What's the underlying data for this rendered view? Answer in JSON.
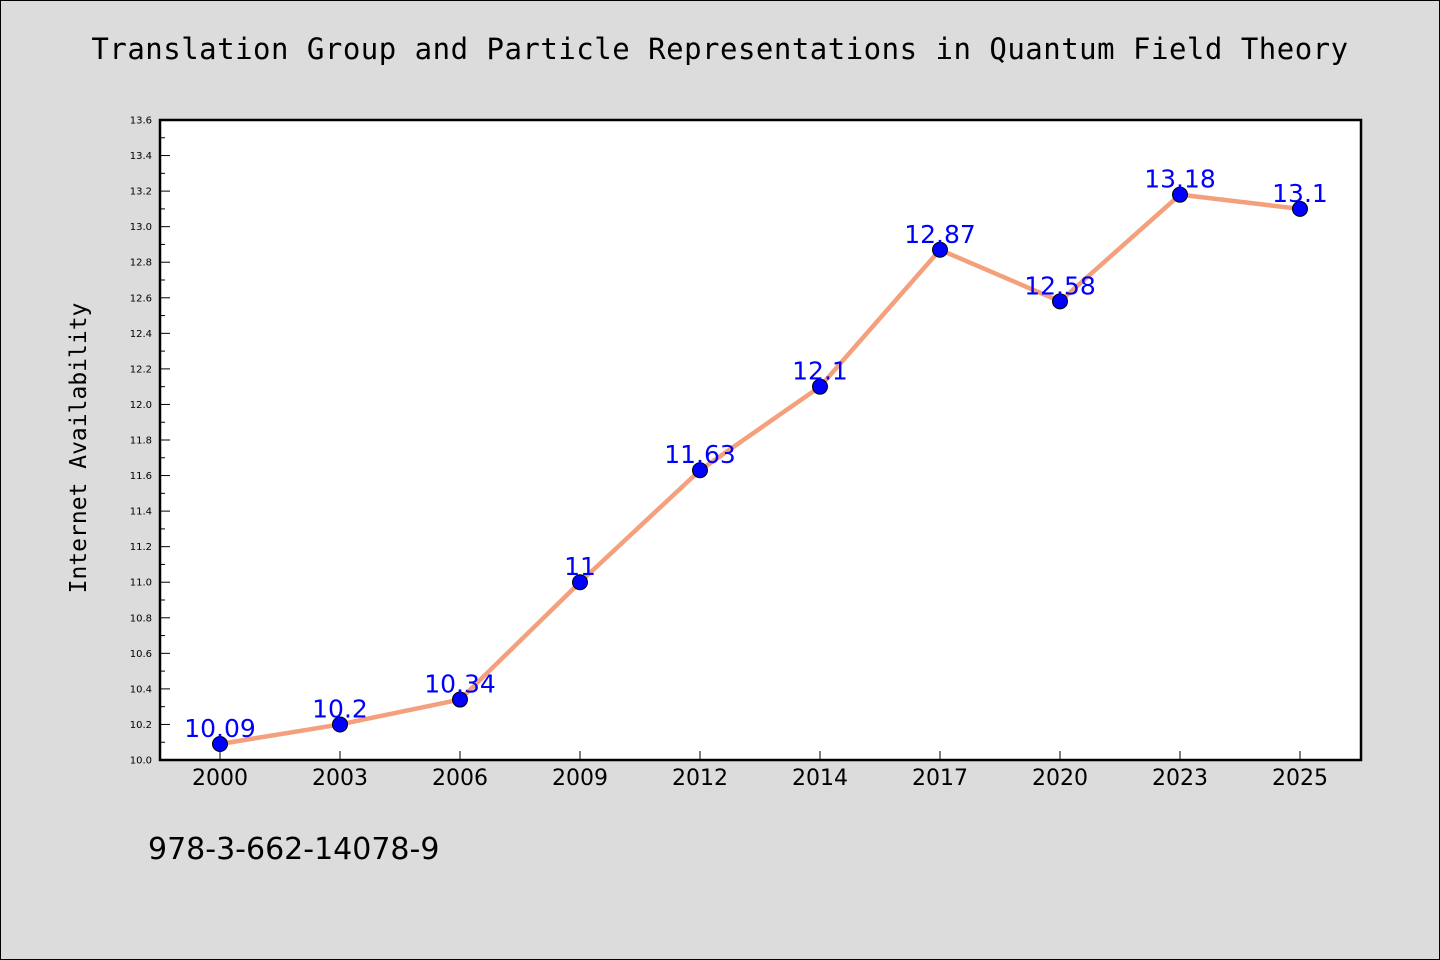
{
  "chart_data": {
    "type": "line",
    "title": "Translation Group and Particle Representations in Quantum Field Theory",
    "xlabel": "",
    "ylabel": "Internet Availability",
    "categories": [
      "2000",
      "2003",
      "2006",
      "2009",
      "2012",
      "2014",
      "2017",
      "2020",
      "2023",
      "2025"
    ],
    "series": [
      {
        "values": [
          10.09,
          10.2,
          10.34,
          11,
          11.63,
          12.1,
          12.87,
          12.58,
          13.18,
          13.1
        ],
        "data_labels": [
          "10.09",
          "10.2",
          "10.34",
          "11",
          "11.63",
          "12.1",
          "12.87",
          "12.58",
          "13.18",
          "13.1"
        ]
      }
    ],
    "ylim": [
      10.0,
      13.6
    ],
    "yticks": [
      "10.0",
      "10.2",
      "10.4",
      "10.6",
      "10.8",
      "11.0",
      "11.2",
      "11.4",
      "11.6",
      "11.8",
      "12.0",
      "12.2",
      "12.4",
      "12.6",
      "12.8",
      "13.0",
      "13.2",
      "13.4",
      "13.6"
    ],
    "grid": false,
    "legend": "none",
    "colors": {
      "line": "#f4a07c",
      "marker": "#0000ff",
      "data_label": "#0000ff",
      "background": "#dcdcdc",
      "plot_area": "#ffffff"
    }
  },
  "footer": {
    "isbn": "978-3-662-14078-9"
  }
}
